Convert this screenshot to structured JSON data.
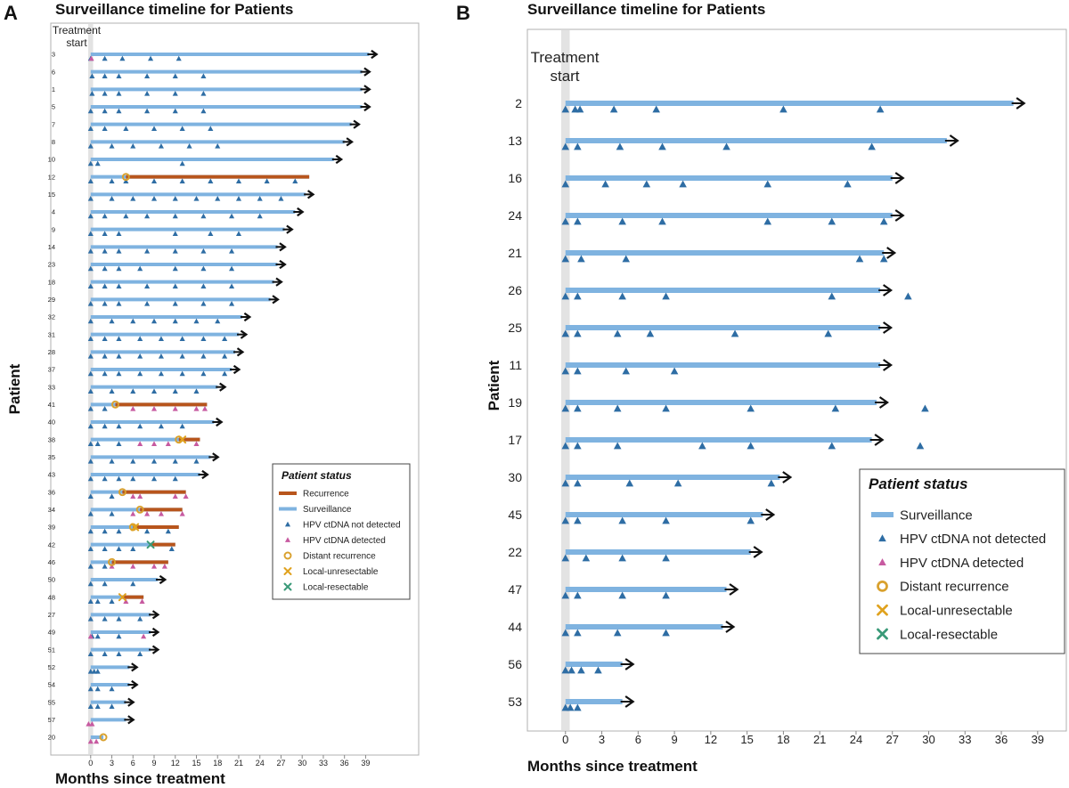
{
  "colors": {
    "surveillance": "#7fb3e0",
    "recurrence": "#b8551c",
    "not_detected": "#2e6da4",
    "detected": "#c75aa0",
    "distant": "#d9a12e",
    "local_unresectable": "#e0a21e",
    "local_resectable": "#3a9a78",
    "arrow": "#111111",
    "treatment_band": "#e3e3e3"
  },
  "chart_data": [
    {
      "type": "timeline",
      "panel_letter": "A",
      "title": "Surveillance timeline for Patients",
      "xlabel": "Months since treatment",
      "ylabel": "Patient",
      "treatment_label": [
        "Treatment",
        "start"
      ],
      "xticks": [
        0,
        3,
        6,
        9,
        12,
        15,
        18,
        21,
        24,
        27,
        30,
        33,
        36,
        39
      ],
      "xlim": [
        -2.5,
        44
      ],
      "legend": {
        "title": "Patient status",
        "items": [
          {
            "kind": "line",
            "key": "recurrence",
            "label": "Recurrence"
          },
          {
            "kind": "line",
            "key": "surveillance",
            "label": "Surveillance"
          },
          {
            "kind": "tri",
            "key": "not_detected",
            "label": "HPV ctDNA not detected"
          },
          {
            "kind": "tri",
            "key": "detected",
            "label": "HPV ctDNA detected"
          },
          {
            "kind": "circle",
            "key": "distant",
            "label": "Distant recurrence"
          },
          {
            "kind": "x",
            "key": "local_unresectable",
            "label": "Local-unresectable"
          },
          {
            "kind": "x",
            "key": "local_resectable",
            "label": "Local-resectable"
          }
        ]
      },
      "patients": [
        {
          "id": "3",
          "end": 39.5,
          "arrow": true,
          "nd": [
            0,
            2,
            4.5,
            8.5,
            12.5
          ],
          "d": [
            0.1
          ]
        },
        {
          "id": "6",
          "end": 38.5,
          "arrow": true,
          "nd": [
            0.2,
            2,
            4,
            8,
            12,
            16
          ],
          "d": []
        },
        {
          "id": "1",
          "end": 38.5,
          "arrow": true,
          "nd": [
            0.2,
            2,
            4,
            8,
            12,
            16
          ],
          "d": []
        },
        {
          "id": "5",
          "end": 38.5,
          "arrow": true,
          "nd": [
            0,
            2,
            4,
            8,
            12,
            16
          ],
          "d": []
        },
        {
          "id": "7",
          "end": 37,
          "arrow": true,
          "nd": [
            0,
            2,
            5,
            9,
            13,
            17
          ],
          "d": []
        },
        {
          "id": "8",
          "end": 36,
          "arrow": true,
          "nd": [
            0,
            3,
            6,
            10,
            14,
            18
          ],
          "d": []
        },
        {
          "id": "10",
          "end": 34.5,
          "arrow": true,
          "nd": [
            0,
            1,
            13
          ],
          "d": []
        },
        {
          "id": "12",
          "end": 31,
          "arrow": false,
          "nd": [
            0,
            3,
            5,
            9,
            13,
            17,
            21,
            25,
            29
          ],
          "d": [],
          "rec_start": 5,
          "rec_end": 31,
          "events": [
            {
              "t": 5,
              "type": "distant"
            }
          ]
        },
        {
          "id": "15",
          "end": 30.5,
          "arrow": true,
          "nd": [
            0,
            3,
            6,
            9,
            12,
            15,
            18,
            21,
            24,
            27
          ],
          "d": []
        },
        {
          "id": "4",
          "end": 29,
          "arrow": true,
          "nd": [
            0,
            2,
            5,
            8,
            12,
            16,
            20,
            24
          ],
          "d": []
        },
        {
          "id": "9",
          "end": 27.5,
          "arrow": true,
          "nd": [
            0,
            2,
            4,
            12,
            17,
            21
          ],
          "d": []
        },
        {
          "id": "14",
          "end": 26.5,
          "arrow": true,
          "nd": [
            0,
            2,
            4,
            8,
            12,
            16,
            20
          ],
          "d": []
        },
        {
          "id": "23",
          "end": 26.5,
          "arrow": true,
          "nd": [
            0,
            2,
            4,
            7,
            12,
            16,
            20
          ],
          "d": []
        },
        {
          "id": "18",
          "end": 26,
          "arrow": true,
          "nd": [
            0,
            2,
            4,
            8,
            12,
            16,
            20
          ],
          "d": []
        },
        {
          "id": "29",
          "end": 25.5,
          "arrow": true,
          "nd": [
            0,
            2,
            4,
            8,
            12,
            16,
            20
          ],
          "d": []
        },
        {
          "id": "32",
          "end": 21.5,
          "arrow": true,
          "nd": [
            0,
            3,
            6,
            9,
            12,
            15,
            18
          ],
          "d": []
        },
        {
          "id": "31",
          "end": 21,
          "arrow": true,
          "nd": [
            0,
            2,
            4,
            7,
            10,
            13,
            16,
            19
          ],
          "d": []
        },
        {
          "id": "28",
          "end": 20.5,
          "arrow": true,
          "nd": [
            0,
            2,
            4,
            7,
            10,
            13,
            16,
            19
          ],
          "d": []
        },
        {
          "id": "37",
          "end": 20,
          "arrow": true,
          "nd": [
            0,
            2,
            4,
            7,
            10,
            13,
            16,
            19
          ],
          "d": []
        },
        {
          "id": "33",
          "end": 18,
          "arrow": true,
          "nd": [
            0,
            3,
            6,
            9,
            12,
            15
          ],
          "d": []
        },
        {
          "id": "41",
          "end": 16.5,
          "arrow": false,
          "nd": [
            0,
            2
          ],
          "d": [
            6,
            9,
            12,
            15,
            16.2
          ],
          "rec_start": 3.5,
          "rec_end": 16.5,
          "events": [
            {
              "t": 3.5,
              "type": "distant"
            }
          ]
        },
        {
          "id": "40",
          "end": 17.5,
          "arrow": true,
          "nd": [
            0,
            2,
            4,
            7,
            10,
            13
          ],
          "d": []
        },
        {
          "id": "38",
          "end": 15.5,
          "arrow": false,
          "nd": [
            0,
            1,
            4
          ],
          "d": [
            7,
            9,
            11,
            15
          ],
          "rec_start": 12.5,
          "rec_end": 15.5,
          "events": [
            {
              "t": 12.5,
              "type": "distant"
            },
            {
              "t": 13,
              "type": "local_unresectable"
            }
          ]
        },
        {
          "id": "35",
          "end": 17,
          "arrow": true,
          "nd": [
            0,
            3,
            6,
            9,
            12,
            15
          ],
          "d": []
        },
        {
          "id": "43",
          "end": 15.5,
          "arrow": true,
          "nd": [
            0,
            2,
            4,
            6,
            9,
            12
          ],
          "d": []
        },
        {
          "id": "36",
          "end": 13.5,
          "arrow": false,
          "nd": [
            0,
            3
          ],
          "d": [
            6,
            7,
            12,
            13.5
          ],
          "rec_start": 4.5,
          "rec_end": 13.5,
          "events": [
            {
              "t": 4.5,
              "type": "distant"
            }
          ]
        },
        {
          "id": "34",
          "end": 13,
          "arrow": false,
          "nd": [
            0,
            3
          ],
          "d": [
            6,
            8,
            10,
            13
          ],
          "rec_start": 7,
          "rec_end": 13,
          "events": [
            {
              "t": 7,
              "type": "distant"
            }
          ]
        },
        {
          "id": "39",
          "end": 12.5,
          "arrow": false,
          "nd": [
            0,
            2,
            4,
            8,
            11
          ],
          "d": [],
          "rec_start": 6,
          "rec_end": 12.5,
          "events": [
            {
              "t": 6,
              "type": "distant"
            },
            {
              "t": 6.3,
              "type": "local_unresectable"
            }
          ]
        },
        {
          "id": "42",
          "end": 12,
          "arrow": false,
          "nd": [
            0,
            2,
            4,
            6,
            11.5
          ],
          "d": [],
          "rec_start": 8.5,
          "rec_end": 12,
          "events": [
            {
              "t": 8.5,
              "type": "local_resectable"
            }
          ]
        },
        {
          "id": "46",
          "end": 11,
          "arrow": false,
          "nd": [
            0,
            2
          ],
          "d": [
            3,
            6,
            9,
            10.5
          ],
          "rec_start": 3,
          "rec_end": 11,
          "events": [
            {
              "t": 3,
              "type": "distant"
            }
          ]
        },
        {
          "id": "50",
          "end": 9.5,
          "arrow": true,
          "nd": [
            0,
            2,
            6
          ],
          "d": []
        },
        {
          "id": "48",
          "end": 7.5,
          "arrow": false,
          "nd": [
            0,
            1,
            3
          ],
          "d": [
            5,
            7.3
          ],
          "rec_start": 4.5,
          "rec_end": 7.5,
          "events": [
            {
              "t": 4.5,
              "type": "local_unresectable"
            }
          ]
        },
        {
          "id": "27",
          "end": 8.5,
          "arrow": true,
          "nd": [
            0,
            2,
            4,
            7
          ],
          "d": []
        },
        {
          "id": "49",
          "end": 8.5,
          "arrow": true,
          "nd": [
            0.2,
            1,
            4
          ],
          "d": [
            0,
            7.5
          ]
        },
        {
          "id": "51",
          "end": 8.5,
          "arrow": true,
          "nd": [
            0,
            2,
            4,
            7
          ],
          "d": []
        },
        {
          "id": "52",
          "end": 5.5,
          "arrow": true,
          "nd": [
            0,
            0.5,
            1
          ],
          "d": []
        },
        {
          "id": "54",
          "end": 5.5,
          "arrow": true,
          "nd": [
            0,
            1,
            3
          ],
          "d": []
        },
        {
          "id": "55",
          "end": 5,
          "arrow": true,
          "nd": [
            0,
            1,
            3
          ],
          "d": []
        },
        {
          "id": "57",
          "end": 5,
          "arrow": true,
          "nd": [],
          "d": [
            -0.3,
            0.2
          ]
        },
        {
          "id": "20",
          "end": 1.8,
          "arrow": false,
          "nd": [],
          "d": [
            0,
            0.8
          ],
          "events": [
            {
              "t": 1.8,
              "type": "distant"
            }
          ]
        }
      ]
    },
    {
      "type": "timeline",
      "panel_letter": "B",
      "title": "Surveillance timeline for Patients",
      "xlabel": "Months since treatment",
      "ylabel": "Patient",
      "treatment_label": [
        "Treatment",
        "start"
      ],
      "xticks": [
        0,
        3,
        6,
        9,
        12,
        15,
        18,
        21,
        24,
        27,
        30,
        33,
        36,
        39
      ],
      "xlim": [
        -3,
        41
      ],
      "legend": {
        "title": "Patient status",
        "items": [
          {
            "kind": "line",
            "key": "surveillance",
            "label": "Surveillance"
          },
          {
            "kind": "tri",
            "key": "not_detected",
            "label": "HPV ctDNA not detected"
          },
          {
            "kind": "tri",
            "key": "detected",
            "label": "HPV ctDNA detected"
          },
          {
            "kind": "circle",
            "key": "distant",
            "label": "Distant recurrence"
          },
          {
            "kind": "x",
            "key": "local_unresectable",
            "label": "Local-unresectable"
          },
          {
            "kind": "x",
            "key": "local_resectable",
            "label": "Local-resectable"
          }
        ]
      },
      "patients": [
        {
          "id": "2",
          "end": 37,
          "arrow": true,
          "nd": [
            0,
            0.8,
            1.2,
            4,
            7.5,
            18,
            26
          ],
          "d": []
        },
        {
          "id": "13",
          "end": 31.5,
          "arrow": true,
          "nd": [
            0,
            1,
            4.5,
            8,
            13.3,
            25.3
          ],
          "d": []
        },
        {
          "id": "16",
          "end": 27,
          "arrow": true,
          "nd": [
            0,
            3.3,
            6.7,
            9.7,
            16.7,
            23.3
          ],
          "d": []
        },
        {
          "id": "24",
          "end": 27,
          "arrow": true,
          "nd": [
            0,
            1,
            4.7,
            8,
            16.7,
            22,
            26.3
          ],
          "d": []
        },
        {
          "id": "21",
          "end": 26.3,
          "arrow": true,
          "nd": [
            0,
            1.3,
            5,
            24.3,
            26.3
          ],
          "d": []
        },
        {
          "id": "26",
          "end": 26,
          "arrow": true,
          "nd": [
            0,
            1,
            4.7,
            8.3,
            22,
            28.3
          ],
          "d": []
        },
        {
          "id": "25",
          "end": 26,
          "arrow": true,
          "nd": [
            0,
            1,
            4.3,
            7,
            14,
            21.7
          ],
          "d": []
        },
        {
          "id": "11",
          "end": 26,
          "arrow": true,
          "nd": [
            0,
            1,
            5,
            9
          ],
          "d": []
        },
        {
          "id": "19",
          "end": 25.7,
          "arrow": true,
          "nd": [
            0,
            1,
            4.3,
            8.3,
            15.3,
            22.3,
            29.7
          ],
          "d": []
        },
        {
          "id": "17",
          "end": 25.3,
          "arrow": true,
          "nd": [
            0,
            1,
            4.3,
            11.3,
            15.3,
            22,
            29.3
          ],
          "d": []
        },
        {
          "id": "30",
          "end": 17.7,
          "arrow": true,
          "nd": [
            0,
            1,
            5.3,
            9.3,
            17
          ],
          "d": []
        },
        {
          "id": "45",
          "end": 16.3,
          "arrow": true,
          "nd": [
            0,
            1,
            4.7,
            8.3,
            15.3
          ],
          "d": []
        },
        {
          "id": "22",
          "end": 15.3,
          "arrow": true,
          "nd": [
            0,
            1.7,
            4.7,
            8.3
          ],
          "d": []
        },
        {
          "id": "47",
          "end": 13.3,
          "arrow": true,
          "nd": [
            0,
            1,
            4.7,
            8.3
          ],
          "d": []
        },
        {
          "id": "44",
          "end": 13,
          "arrow": true,
          "nd": [
            0,
            1,
            4.3,
            8.3
          ],
          "d": []
        },
        {
          "id": "56",
          "end": 4.7,
          "arrow": true,
          "nd": [
            0,
            0.5,
            1.3,
            2.7
          ],
          "d": []
        },
        {
          "id": "53",
          "end": 4.7,
          "arrow": true,
          "nd": [
            0,
            0.4,
            1
          ],
          "d": []
        }
      ]
    }
  ]
}
